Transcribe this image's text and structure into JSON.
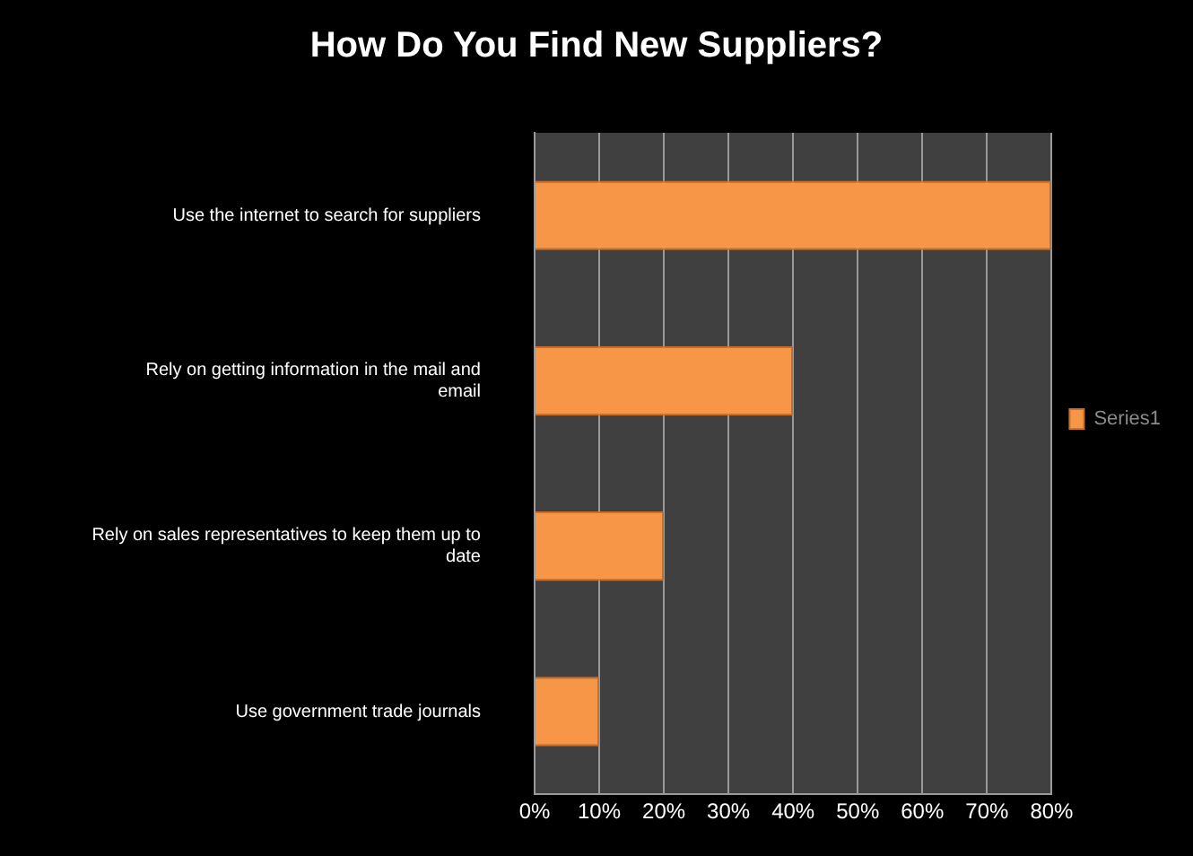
{
  "chart_data": {
    "type": "bar",
    "orientation": "horizontal",
    "title": "How Do You Find New Suppliers?",
    "categories": [
      "Use the internet to search for suppliers",
      "Rely on getting information in the mail and email",
      "Rely on sales representatives to keep them up to date",
      "Use government trade journals"
    ],
    "series": [
      {
        "name": "Series1",
        "color": "#f79646",
        "values": [
          80,
          40,
          20,
          10
        ]
      }
    ],
    "xlim": [
      0,
      80
    ],
    "xticks": [
      {
        "value": 0,
        "label": "0%"
      },
      {
        "value": 10,
        "label": "10%"
      },
      {
        "value": 20,
        "label": "20%"
      },
      {
        "value": 30,
        "label": "30%"
      },
      {
        "value": 40,
        "label": "40%"
      },
      {
        "value": 50,
        "label": "50%"
      },
      {
        "value": 60,
        "label": "60%"
      },
      {
        "value": 70,
        "label": "70%"
      },
      {
        "value": 80,
        "label": "80%"
      }
    ],
    "grid": "x",
    "legend": "right"
  }
}
